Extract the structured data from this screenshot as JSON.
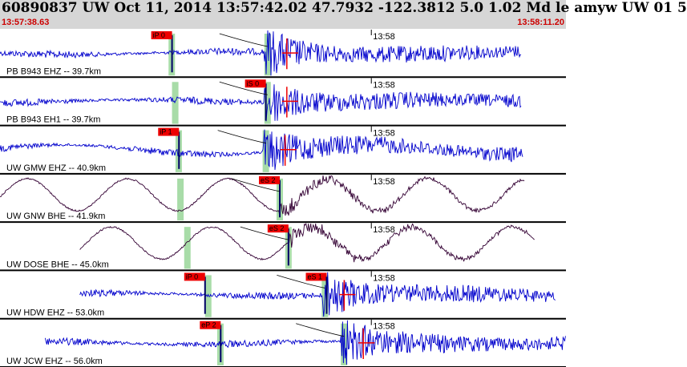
{
  "header": {
    "title": "60890837 UW Oct 11, 2014 13:57:42.02   47.7932 -122.3812  5.0 1.02 Md le amyw UW 01   5",
    "time_start": "13:57:38.63",
    "time_end": "13:58:11.20"
  },
  "colors": {
    "header_bg": "#d6d6d6",
    "vertical_trace": "#0000cc",
    "horizontal_trace": "#330033",
    "pick_label_bg": "#ee0000",
    "window_highlight": "#a8dca8",
    "marker": "#ee0000"
  },
  "chart_data": {
    "type": "line",
    "title": "",
    "x_range_seconds_after_start": [
      0,
      32.57
    ],
    "tick_label": "13:58",
    "tick_offset_seconds": 21.37,
    "channels": [
      {
        "label": "PB B943 EHZ -- 39.7km",
        "component": "vertical",
        "pick_label": "iP 0",
        "pick_offset_s": 9.9,
        "s_pick_label": "",
        "s_pick_offset_s": null,
        "window_offset_s": 9.7,
        "onset_offset_s": 15.4,
        "trace_start_s": 0.0,
        "trace_end_s": 30.0
      },
      {
        "label": "PB B943 EH1 -- 39.7km",
        "component": "vertical",
        "pick_label": "iS 0",
        "pick_offset_s": 15.3,
        "s_pick_label": "",
        "s_pick_offset_s": null,
        "window_offset_s": 9.9,
        "onset_offset_s": 15.4,
        "trace_start_s": 0.0,
        "trace_end_s": 30.0
      },
      {
        "label": "UW GMW EHZ -- 40.9km",
        "component": "vertical",
        "pick_label": "iP 1",
        "pick_offset_s": 10.3,
        "s_pick_label": "",
        "s_pick_offset_s": null,
        "window_offset_s": 10.1,
        "onset_offset_s": 15.3,
        "trace_start_s": 0.0,
        "trace_end_s": 30.1
      },
      {
        "label": "UW GNW BHE -- 41.9km",
        "component": "horizontal",
        "pick_label": "eS 2",
        "pick_offset_s": 16.1,
        "s_pick_label": "",
        "s_pick_offset_s": null,
        "window_offset_s": 10.2,
        "onset_offset_s": 16.1,
        "trace_start_s": 0.0,
        "trace_end_s": 30.2
      },
      {
        "label": "UW DOSE BHE -- 45.0km",
        "component": "horizontal",
        "pick_label": "eS 2",
        "pick_offset_s": 16.6,
        "s_pick_label": "",
        "s_pick_offset_s": null,
        "window_offset_s": 10.6,
        "onset_offset_s": 16.6,
        "trace_start_s": 4.6,
        "trace_end_s": 30.8
      },
      {
        "label": "UW HDW EHZ -- 53.0km",
        "component": "vertical",
        "pick_label": "iP 0",
        "pick_offset_s": 11.8,
        "s_pick_label": "eS 1",
        "s_pick_offset_s": 18.8,
        "window_offset_s": 11.8,
        "onset_offset_s": 18.7,
        "trace_start_s": 4.6,
        "trace_end_s": 32.0
      },
      {
        "label": "UW JCW EHZ -- 56.0km",
        "component": "vertical",
        "pick_label": "eP 2",
        "pick_offset_s": 12.7,
        "s_pick_label": "",
        "s_pick_offset_s": null,
        "window_offset_s": 12.5,
        "onset_offset_s": 19.8,
        "trace_start_s": 2.6,
        "trace_end_s": 32.57
      }
    ]
  }
}
